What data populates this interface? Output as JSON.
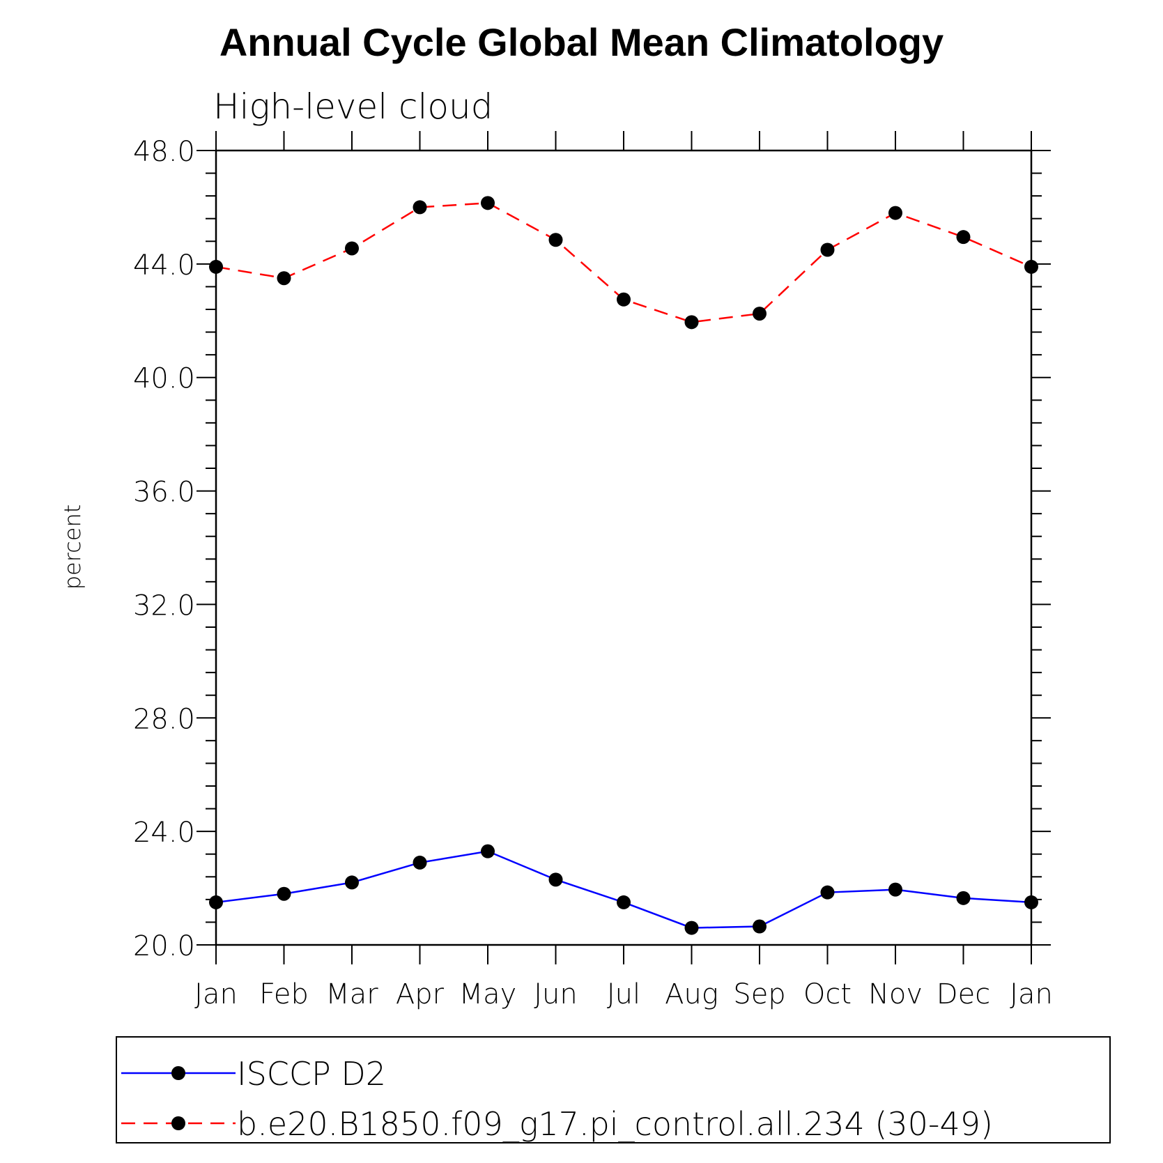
{
  "chart_data": {
    "type": "line",
    "title": "Annual Cycle Global Mean Climatology",
    "subtitle": "High-level cloud",
    "ylabel": "percent",
    "xlabel": "",
    "categories": [
      "Jan",
      "Feb",
      "Mar",
      "Apr",
      "May",
      "Jun",
      "Jul",
      "Aug",
      "Sep",
      "Oct",
      "Nov",
      "Dec",
      "Jan"
    ],
    "ylim": [
      20.0,
      48.0
    ],
    "yticks": [
      "20.0",
      "24.0",
      "28.0",
      "32.0",
      "36.0",
      "40.0",
      "44.0",
      "48.0"
    ],
    "grid": false,
    "legend_position": "bottom",
    "series": [
      {
        "name": "ISCCP D2",
        "color": "#0000ff",
        "line_style": "solid",
        "marker": "filled-circle",
        "values": [
          21.5,
          21.8,
          22.2,
          22.9,
          23.3,
          22.3,
          21.5,
          20.6,
          20.65,
          21.85,
          21.95,
          21.65,
          21.5
        ]
      },
      {
        "name": "b.e20.B1850.f09_g17.pi_control.all.234 (30-49)",
        "color": "#ff0000",
        "line_style": "dashed",
        "marker": "filled-circle",
        "values": [
          43.9,
          43.5,
          44.55,
          46.0,
          46.15,
          44.85,
          42.75,
          41.95,
          42.25,
          44.5,
          45.8,
          44.95,
          43.9
        ]
      }
    ]
  }
}
